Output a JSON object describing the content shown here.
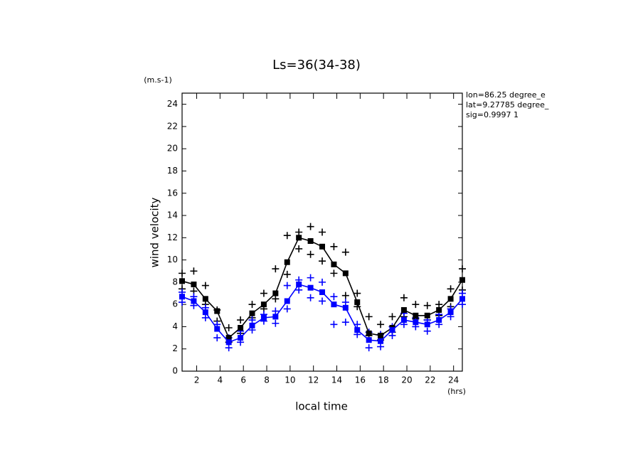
{
  "chart_data": {
    "type": "line",
    "title": "Ls=36(34-38)",
    "y_unit": "(m.s-1)",
    "x_unit": "(hrs)",
    "xlabel": "local time",
    "ylabel": "wind velocity",
    "annotations": [
      "lon=86.25 degree_e",
      "lat=9.27785 degree_",
      "sig=0.9997 1"
    ],
    "x": [
      0.75,
      1.75,
      2.75,
      3.75,
      4.75,
      5.75,
      6.75,
      7.75,
      8.75,
      9.75,
      10.75,
      11.75,
      12.75,
      13.75,
      14.75,
      15.75,
      16.75,
      17.75,
      18.75,
      19.75,
      20.75,
      21.75,
      22.75,
      23.75,
      24.75
    ],
    "series": [
      {
        "color": "#000000",
        "values": [
          8.1,
          7.8,
          6.5,
          5.4,
          3.0,
          3.9,
          5.2,
          6.0,
          7.0,
          9.8,
          12.0,
          11.7,
          11.2,
          9.6,
          8.8,
          6.2,
          3.4,
          3.2,
          3.9,
          5.5,
          5.0,
          5.0,
          5.5,
          6.5,
          8.2
        ]
      },
      {
        "color": "#0000ff",
        "values": [
          6.7,
          6.3,
          5.3,
          3.8,
          2.6,
          3.0,
          4.1,
          4.8,
          4.9,
          6.3,
          7.8,
          7.5,
          7.1,
          6.0,
          5.7,
          3.7,
          2.8,
          2.7,
          3.7,
          4.6,
          4.4,
          4.2,
          4.6,
          5.3,
          6.5
        ]
      }
    ],
    "markers": [
      {
        "color": "#000000",
        "values": [
          8.8,
          9.0,
          7.7,
          5.5,
          3.9,
          4.6,
          6.0,
          7.0,
          9.2,
          12.2,
          12.5,
          13.0,
          12.5,
          11.2,
          10.7,
          7.0,
          4.9,
          4.2,
          4.9,
          6.6,
          6.0,
          5.9,
          6.0,
          7.4,
          9.2
        ]
      },
      {
        "color": "#000000",
        "values": [
          7.4,
          7.2,
          6.0,
          4.5,
          2.6,
          3.4,
          4.8,
          5.6,
          6.5,
          8.7,
          11.0,
          10.5,
          9.9,
          8.8,
          6.8,
          5.8,
          3.2,
          2.8,
          3.5,
          4.9,
          4.7,
          4.6,
          5.0,
          5.8,
          7.3
        ]
      },
      {
        "color": "#0000ff",
        "values": [
          7.1,
          6.7,
          5.7,
          4.2,
          3.0,
          3.6,
          4.6,
          5.1,
          5.4,
          7.7,
          8.2,
          8.4,
          8.0,
          6.7,
          6.2,
          4.2,
          3.5,
          3.3,
          4.0,
          5.2,
          4.8,
          4.6,
          5.1,
          5.6,
          7.0
        ]
      },
      {
        "color": "#0000ff",
        "values": [
          6.2,
          5.9,
          4.8,
          3.0,
          2.1,
          2.6,
          3.7,
          4.5,
          4.3,
          5.6,
          7.3,
          6.6,
          6.3,
          4.2,
          4.4,
          3.3,
          2.1,
          2.2,
          3.2,
          4.2,
          4.0,
          3.6,
          4.2,
          4.9,
          6.0
        ]
      }
    ],
    "xlim": [
      0.75,
      24.75
    ],
    "ylim": [
      0,
      25
    ],
    "xticks": [
      2,
      4,
      6,
      8,
      10,
      12,
      14,
      16,
      18,
      20,
      22,
      24
    ],
    "yticks": [
      0,
      2,
      4,
      6,
      8,
      10,
      12,
      14,
      16,
      18,
      20,
      22,
      24
    ]
  }
}
